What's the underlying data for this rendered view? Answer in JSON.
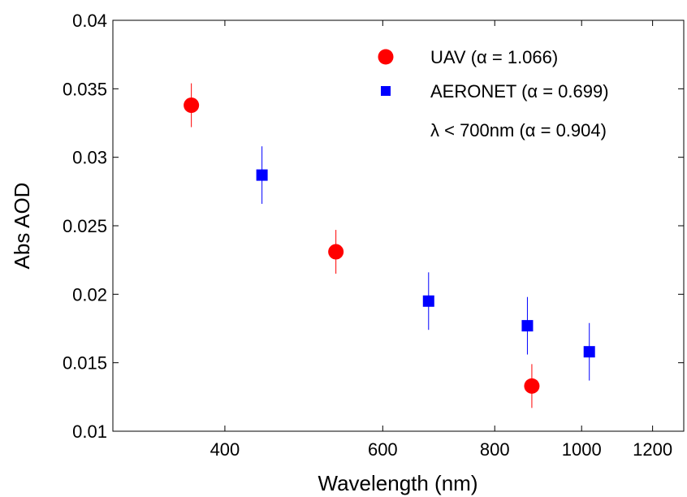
{
  "chart_data": {
    "type": "scatter",
    "xlabel": "Wavelength (nm)",
    "ylabel": "Abs AOD",
    "x_scale": "log",
    "xlim": [
      300,
      1300
    ],
    "ylim": [
      0.01,
      0.04
    ],
    "x_ticks": [
      {
        "value": 400,
        "label": "400"
      },
      {
        "value": 600,
        "label": "600"
      },
      {
        "value": 800,
        "label": "800"
      },
      {
        "value": 1000,
        "label": "1000"
      },
      {
        "value": 1200,
        "label": "1200"
      }
    ],
    "y_ticks": [
      {
        "value": 0.01,
        "label": "0.01"
      },
      {
        "value": 0.015,
        "label": "0.015"
      },
      {
        "value": 0.02,
        "label": "0.02"
      },
      {
        "value": 0.025,
        "label": "0.025"
      },
      {
        "value": 0.03,
        "label": "0.03"
      },
      {
        "value": 0.035,
        "label": "0.035"
      },
      {
        "value": 0.04,
        "label": "0.04"
      }
    ],
    "grid": false,
    "legend_position": "top-right",
    "series": [
      {
        "name": "UAV (α = 1.066)",
        "marker": "circle",
        "color": "#ff0000",
        "points": [
          {
            "x": 367,
            "y": 0.0338,
            "err": 0.0016
          },
          {
            "x": 532,
            "y": 0.0231,
            "err": 0.0016
          },
          {
            "x": 880,
            "y": 0.0133,
            "err": 0.0016
          }
        ]
      },
      {
        "name": "AERONET (α = 0.699)",
        "marker": "square",
        "color": "#0000ff",
        "points": [
          {
            "x": 440,
            "y": 0.0287,
            "err": 0.0021
          },
          {
            "x": 675,
            "y": 0.0195,
            "err": 0.0021
          },
          {
            "x": 870,
            "y": 0.0177,
            "err": 0.0021
          },
          {
            "x": 1020,
            "y": 0.0158,
            "err": 0.0021
          }
        ]
      }
    ],
    "annotation": "λ < 700nm (α = 0.904)"
  }
}
